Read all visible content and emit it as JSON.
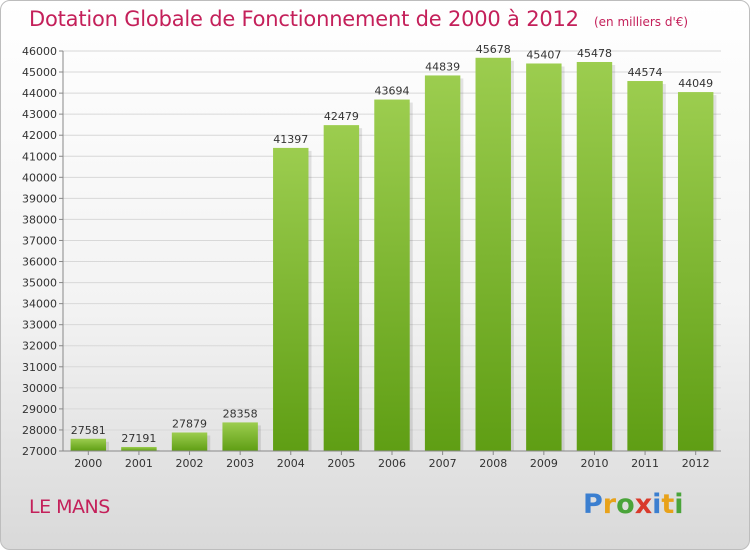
{
  "title": "Dotation Globale de Fonctionnement de 2000 à 2012",
  "unit_note": "(en milliers d'€)",
  "city": "LE MANS",
  "logo": {
    "text": "Proxiti",
    "letters": [
      {
        "char": "P",
        "color": "#3b7fd0"
      },
      {
        "char": "r",
        "color": "#e8a21a"
      },
      {
        "char": "o",
        "color": "#4aa43a"
      },
      {
        "char": "x",
        "color": "#d93a2b"
      },
      {
        "char": "i",
        "color": "#3b7fd0"
      },
      {
        "char": "t",
        "color": "#e8a21a"
      },
      {
        "char": "i",
        "color": "#4aa43a"
      }
    ]
  },
  "colors": {
    "title": "#c4205a",
    "bar_top": "#9ccd4f",
    "bar_bottom": "#5f9e14",
    "grid": "#d8d8d8",
    "axis_text": "#333333"
  },
  "chart_data": {
    "type": "bar",
    "title": "Dotation Globale de Fonctionnement de 2000 à 2012",
    "subtitle": "(en milliers d'€)",
    "xlabel": "",
    "ylabel": "",
    "categories": [
      "2000",
      "2001",
      "2002",
      "2003",
      "2004",
      "2005",
      "2006",
      "2007",
      "2008",
      "2009",
      "2010",
      "2011",
      "2012"
    ],
    "values": [
      27581,
      27191,
      27879,
      28358,
      41397,
      42479,
      43694,
      44839,
      45678,
      45407,
      45478,
      44574,
      44049
    ],
    "value_labels": [
      "27581",
      "27191",
      "27879",
      "28358",
      "41397",
      "42479",
      "43694",
      "44839",
      "45678",
      "45407",
      "45478",
      "44574",
      "44049"
    ],
    "ylim": [
      27000,
      46000
    ],
    "yticks": [
      27000,
      28000,
      29000,
      30000,
      31000,
      32000,
      33000,
      34000,
      35000,
      36000,
      37000,
      38000,
      39000,
      40000,
      41000,
      42000,
      43000,
      44000,
      45000,
      46000
    ],
    "ytick_labels": [
      "27000",
      "28000",
      "29000",
      "30000",
      "31000",
      "32000",
      "33000",
      "34000",
      "35000",
      "36000",
      "37000",
      "38000",
      "39000",
      "40000",
      "41000",
      "42000",
      "43000",
      "44000",
      "45000",
      "46000"
    ],
    "grid": true,
    "legend": "none"
  }
}
